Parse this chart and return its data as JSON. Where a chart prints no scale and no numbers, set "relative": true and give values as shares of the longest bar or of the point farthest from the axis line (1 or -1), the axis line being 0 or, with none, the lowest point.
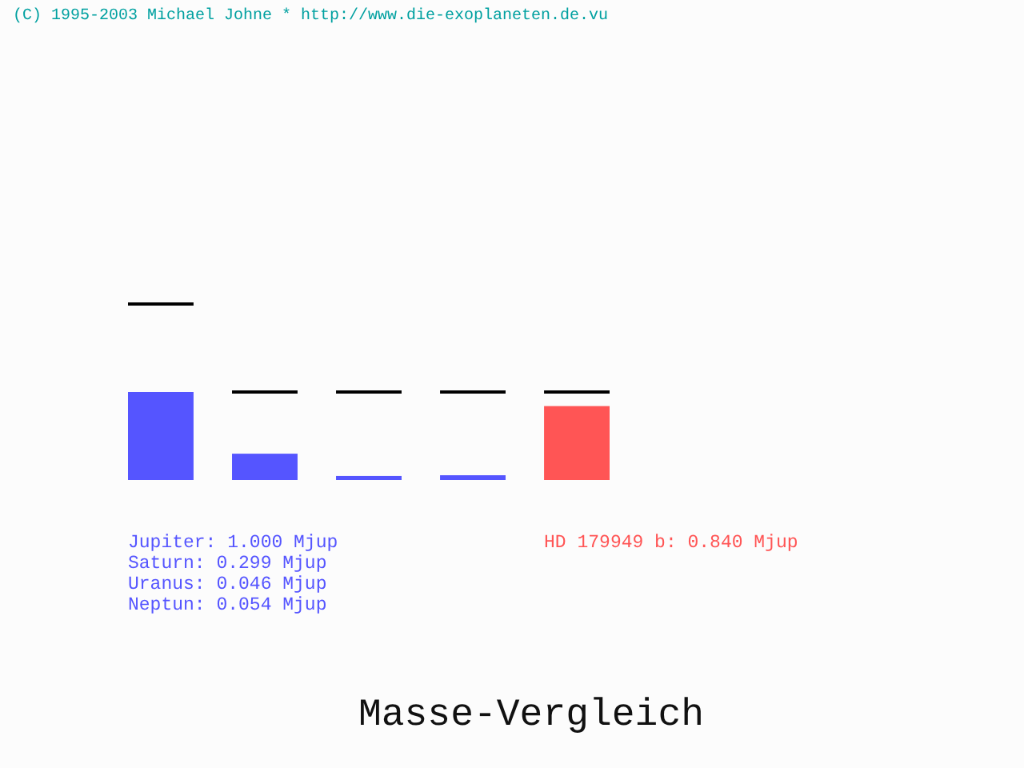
{
  "chart_data": {
    "type": "bar",
    "title": "Masse-Vergleich",
    "categories": [
      null,
      null,
      null,
      null,
      null
    ],
    "values": [
      1.0,
      0.299,
      0.046,
      0.054,
      0.84
    ],
    "colors": [
      "#5555ff",
      "#5555ff",
      "#5555ff",
      "#5555ff",
      "#ff5555"
    ],
    "relative": true,
    "annotations": [
      "Jupiter: 1.000 Mjup",
      "Saturn: 0.299 Mjup",
      "Uranus: 0.046 Mjup",
      "Neptun: 0.054 Mjup",
      "HD 179949 b: 0.840 Mjup",
      "(C) 1995-2003 Michael Johne * http://www.die-exoplaneten.de.vu"
    ]
  }
}
